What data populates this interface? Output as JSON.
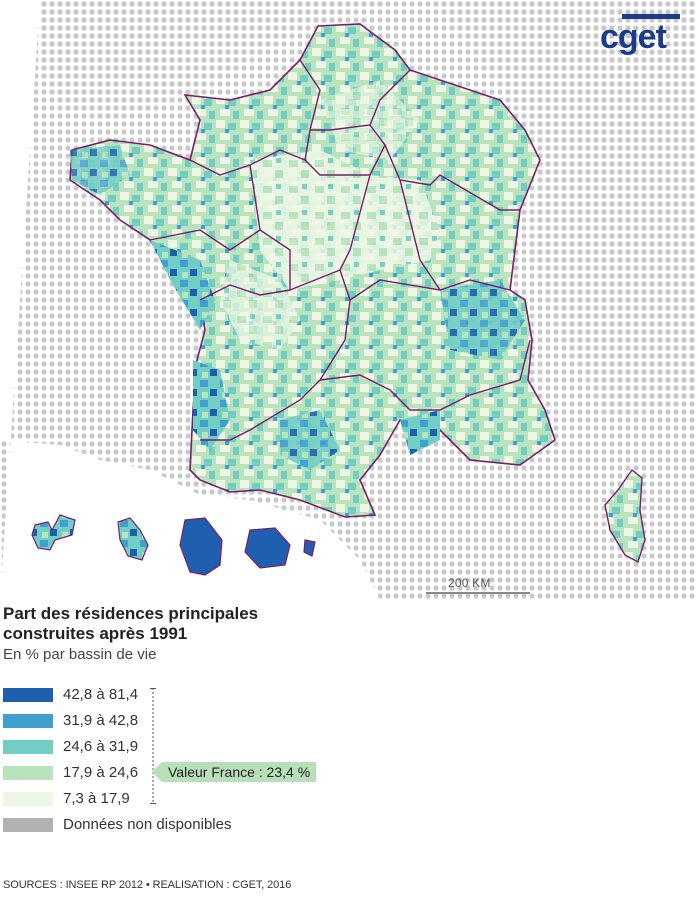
{
  "logo": {
    "text": "cget",
    "color": "#1b3a8c"
  },
  "map": {
    "scale_label": "200 KM",
    "border_color": "#7a1d6b",
    "sea_dot_color": "#c8c8c8",
    "regions": [
      "Hauts-de-France",
      "Normandie",
      "Île-de-France",
      "Grand Est",
      "Bretagne",
      "Pays de la Loire",
      "Centre-Val de Loire",
      "Bourgogne-Franche-Comté",
      "Nouvelle-Aquitaine",
      "Auvergne-Rhône-Alpes",
      "Occitanie",
      "Provence-Alpes-Côte d'Azur",
      "Corse",
      "Guadeloupe",
      "Martinique",
      "Guyane",
      "La Réunion",
      "Mayotte"
    ]
  },
  "legend": {
    "title_line1": "Part des résidences principales",
    "title_line2": "construites après 1991",
    "subtitle": "En % par bassin de vie",
    "classes": [
      {
        "label": "42,8 à 81,4",
        "color": "#1f5fb0"
      },
      {
        "label": "31,9 à 42,8",
        "color": "#3fa0cf"
      },
      {
        "label": "24,6 à 31,9",
        "color": "#72cdc4"
      },
      {
        "label": "17,9 à 24,6",
        "color": "#b8e3bd"
      },
      {
        "label": "7,3 à 17,9",
        "color": "#eef7e6"
      },
      {
        "label": "Données non disponibles",
        "color": "#b2b2b2"
      }
    ],
    "france_value": "Valeur France : 23,4 %"
  },
  "sources": "SOURCES : INSEE RP 2012 • REALISATION : CGET, 2016"
}
